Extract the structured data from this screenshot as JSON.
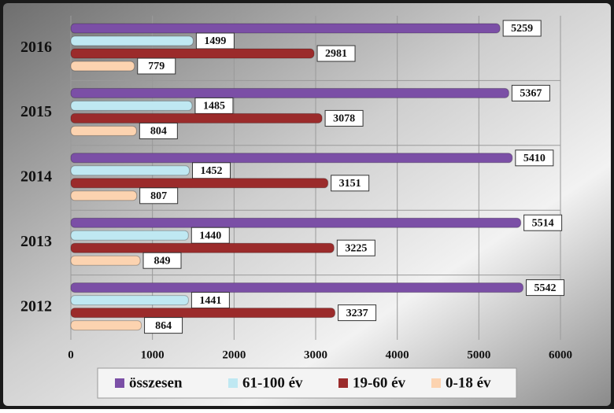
{
  "chart_data": {
    "type": "bar",
    "orientation": "horizontal",
    "categories": [
      "2016",
      "2015",
      "2014",
      "2013",
      "2012"
    ],
    "series": [
      {
        "name": "összesen",
        "color": "#7b4fa6",
        "values": [
          5259,
          5367,
          5410,
          5514,
          5542
        ]
      },
      {
        "name": "61-100 év",
        "color": "#bfe8f2",
        "values": [
          1499,
          1485,
          1452,
          1440,
          1441
        ]
      },
      {
        "name": "19-60 év",
        "color": "#9b2b2b",
        "values": [
          2981,
          3078,
          3151,
          3225,
          3237
        ]
      },
      {
        "name": "0-18 év",
        "color": "#fcd3b0",
        "values": [
          779,
          804,
          807,
          849,
          864
        ]
      }
    ],
    "xlim": [
      0,
      6000
    ],
    "xticks": [
      0,
      1000,
      2000,
      3000,
      4000,
      5000,
      6000
    ],
    "grid": true,
    "legend": "bottom"
  }
}
